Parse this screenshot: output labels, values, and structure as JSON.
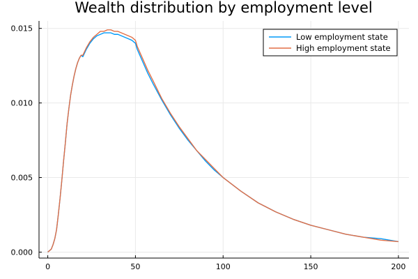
{
  "chart_data": {
    "type": "line",
    "title": "Wealth distribution by employment level",
    "xlabel": "",
    "ylabel": "",
    "xlim": [
      -5,
      206
    ],
    "ylim": [
      -0.0004,
      0.0155
    ],
    "xticks": [
      0,
      50,
      100,
      150,
      200
    ],
    "xtick_labels": [
      "0",
      "50",
      "100",
      "150",
      "200"
    ],
    "yticks": [
      0.0,
      0.005,
      0.01,
      0.015
    ],
    "ytick_labels": [
      "0.000",
      "0.005",
      "0.010",
      "0.015"
    ],
    "grid": true,
    "legend_position": "top-right",
    "series": [
      {
        "name": "Low employment state",
        "color": "#009af9",
        "x": [
          0,
          2,
          3,
          4,
          5,
          6,
          7,
          8,
          9,
          10,
          11,
          12,
          13,
          14,
          15,
          16,
          17,
          18,
          19,
          20,
          22,
          24,
          26,
          28,
          30,
          32,
          34,
          36,
          38,
          40,
          42,
          44,
          46,
          48,
          50,
          51,
          54,
          57,
          60,
          65,
          70,
          75,
          80,
          85,
          90,
          95,
          100,
          110,
          120,
          130,
          140,
          150,
          160,
          170,
          180,
          190,
          200
        ],
        "y": [
          0.0,
          0.0002,
          0.0005,
          0.0009,
          0.0015,
          0.0025,
          0.0036,
          0.0048,
          0.0061,
          0.0073,
          0.0086,
          0.0096,
          0.0105,
          0.0112,
          0.0118,
          0.0123,
          0.0127,
          0.013,
          0.0132,
          0.0131,
          0.0136,
          0.014,
          0.0143,
          0.0145,
          0.0146,
          0.0147,
          0.0147,
          0.0147,
          0.0146,
          0.0146,
          0.0145,
          0.0144,
          0.0143,
          0.0142,
          0.014,
          0.0136,
          0.0128,
          0.012,
          0.0113,
          0.0102,
          0.0092,
          0.0083,
          0.0075,
          0.0068,
          0.0061,
          0.0055,
          0.005,
          0.0041,
          0.0033,
          0.0027,
          0.0022,
          0.0018,
          0.0015,
          0.0012,
          0.001,
          0.0009,
          0.0007
        ]
      },
      {
        "name": "High employment state",
        "color": "#e26f46",
        "x": [
          0,
          2,
          3,
          4,
          5,
          6,
          7,
          8,
          9,
          10,
          11,
          12,
          13,
          14,
          15,
          16,
          17,
          18,
          19,
          20,
          22,
          24,
          26,
          28,
          30,
          32,
          34,
          36,
          38,
          40,
          42,
          44,
          46,
          48,
          50,
          51,
          54,
          57,
          60,
          65,
          70,
          75,
          80,
          85,
          90,
          95,
          100,
          110,
          120,
          130,
          140,
          150,
          160,
          170,
          180,
          190,
          200
        ],
        "y": [
          0.0,
          0.0002,
          0.0005,
          0.0009,
          0.0015,
          0.0025,
          0.0036,
          0.0048,
          0.0061,
          0.0073,
          0.0086,
          0.0096,
          0.0105,
          0.0112,
          0.0118,
          0.0123,
          0.0127,
          0.013,
          0.0132,
          0.0132,
          0.0137,
          0.0141,
          0.0144,
          0.0146,
          0.0148,
          0.0148,
          0.0149,
          0.0149,
          0.0148,
          0.0148,
          0.0147,
          0.0146,
          0.0145,
          0.0144,
          0.0142,
          0.0138,
          0.013,
          0.0122,
          0.0115,
          0.0103,
          0.0093,
          0.0084,
          0.0076,
          0.0068,
          0.0062,
          0.0056,
          0.005,
          0.0041,
          0.0033,
          0.0027,
          0.0022,
          0.0018,
          0.0015,
          0.0012,
          0.001,
          0.0008,
          0.0007
        ]
      }
    ]
  }
}
